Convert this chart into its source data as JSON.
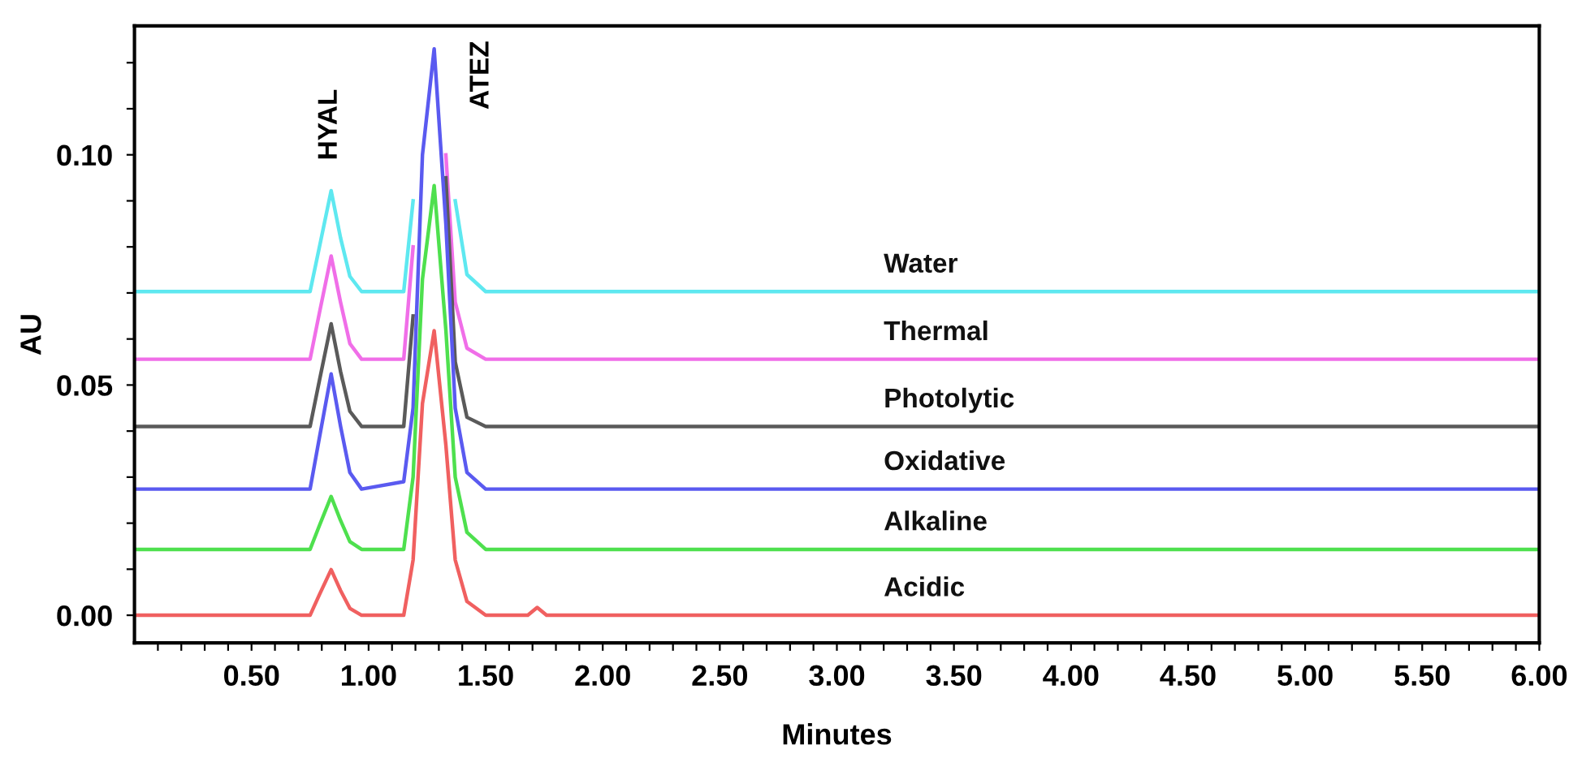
{
  "chart_data": {
    "type": "line",
    "xlabel": "Minutes",
    "ylabel": "AU",
    "x": [
      0.01,
      0.75,
      0.79,
      0.84,
      0.88,
      0.92,
      0.97,
      1.15,
      1.19,
      1.23,
      1.28,
      1.33,
      1.37,
      1.42,
      1.5,
      1.68,
      1.72,
      1.76,
      6.0
    ],
    "series": [
      {
        "name": "Water",
        "color": "#5ee8f0",
        "values": [
          0.0703,
          0.0703,
          0.08,
          0.0922,
          0.082,
          0.0736,
          0.0703,
          0.0703,
          0.09,
          null,
          null,
          null,
          0.09,
          0.074,
          0.0703,
          0.0703,
          0.0703,
          0.0703,
          0.0703
        ]
      },
      {
        "name": "Thermal",
        "color": "#f06ee8",
        "values": [
          0.0556,
          0.0556,
          0.0657,
          0.078,
          0.068,
          0.059,
          0.0556,
          0.0556,
          0.08,
          null,
          null,
          0.1,
          0.068,
          0.058,
          0.0556,
          0.0556,
          0.0556,
          0.0556,
          0.0556
        ]
      },
      {
        "name": "Photolytic",
        "color": "#5a5a5a",
        "values": [
          0.041,
          0.041,
          0.051,
          0.0633,
          0.053,
          0.0443,
          0.041,
          0.041,
          0.065,
          null,
          null,
          0.095,
          0.055,
          0.043,
          0.041,
          0.041,
          0.041,
          0.041,
          0.041
        ]
      },
      {
        "name": "Oxidative",
        "color": "#5a5af0",
        "values": [
          0.0274,
          0.0274,
          0.0386,
          0.0524,
          0.0411,
          0.031,
          0.0274,
          0.029,
          0.045,
          0.1,
          0.123,
          0.085,
          0.045,
          0.031,
          0.0274,
          0.0274,
          0.0274,
          0.0274,
          0.0274
        ]
      },
      {
        "name": "Alkaline",
        "color": "#4ee04e",
        "values": [
          0.0143,
          0.0143,
          0.0195,
          0.0258,
          0.0206,
          0.016,
          0.0143,
          0.0143,
          0.03,
          0.073,
          0.0933,
          0.062,
          0.03,
          0.018,
          0.0143,
          0.0143,
          0.0143,
          0.0143,
          0.0143
        ]
      },
      {
        "name": "Acidic",
        "color": "#f06060",
        "values": [
          0.0,
          0.0,
          0.0045,
          0.0099,
          0.0054,
          0.0015,
          0.0,
          0.0,
          0.012,
          0.046,
          0.0618,
          0.037,
          0.012,
          0.003,
          0.0,
          0.0,
          0.0017,
          0.0,
          0.0
        ]
      }
    ],
    "annotations": [
      "HYAL",
      "ATEZ"
    ],
    "xlim": [
      0.0,
      6.0
    ],
    "ylim": [
      -0.006,
      0.128
    ],
    "xticks": [
      {
        "value": 0.1,
        "label": null
      },
      {
        "value": 0.2,
        "label": null
      },
      {
        "value": 0.3,
        "label": null
      },
      {
        "value": 0.4,
        "label": null
      },
      {
        "value": 0.5,
        "label": "0.50"
      },
      {
        "value": 0.6,
        "label": null
      },
      {
        "value": 0.7,
        "label": null
      },
      {
        "value": 0.8,
        "label": null
      },
      {
        "value": 0.9,
        "label": null
      },
      {
        "value": 1.0,
        "label": "1.00"
      },
      {
        "value": 1.1,
        "label": null
      },
      {
        "value": 1.2,
        "label": null
      },
      {
        "value": 1.3,
        "label": null
      },
      {
        "value": 1.4,
        "label": null
      },
      {
        "value": 1.5,
        "label": "1.50"
      },
      {
        "value": 1.6,
        "label": null
      },
      {
        "value": 1.7,
        "label": null
      },
      {
        "value": 1.8,
        "label": null
      },
      {
        "value": 1.9,
        "label": null
      },
      {
        "value": 2.0,
        "label": "2.00"
      },
      {
        "value": 2.1,
        "label": null
      },
      {
        "value": 2.2,
        "label": null
      },
      {
        "value": 2.3,
        "label": null
      },
      {
        "value": 2.4,
        "label": null
      },
      {
        "value": 2.5,
        "label": "2.50"
      },
      {
        "value": 2.6,
        "label": null
      },
      {
        "value": 2.7,
        "label": null
      },
      {
        "value": 2.8,
        "label": null
      },
      {
        "value": 2.9,
        "label": null
      },
      {
        "value": 3.0,
        "label": "3.00"
      },
      {
        "value": 3.1,
        "label": null
      },
      {
        "value": 3.2,
        "label": null
      },
      {
        "value": 3.3,
        "label": null
      },
      {
        "value": 3.4,
        "label": null
      },
      {
        "value": 3.5,
        "label": "3.50"
      },
      {
        "value": 3.6,
        "label": null
      },
      {
        "value": 3.7,
        "label": null
      },
      {
        "value": 3.8,
        "label": null
      },
      {
        "value": 3.9,
        "label": null
      },
      {
        "value": 4.0,
        "label": "4.00"
      },
      {
        "value": 4.1,
        "label": null
      },
      {
        "value": 4.2,
        "label": null
      },
      {
        "value": 4.3,
        "label": null
      },
      {
        "value": 4.4,
        "label": null
      },
      {
        "value": 4.5,
        "label": "4.50"
      },
      {
        "value": 4.6,
        "label": null
      },
      {
        "value": 4.7,
        "label": null
      },
      {
        "value": 4.8,
        "label": null
      },
      {
        "value": 4.9,
        "label": null
      },
      {
        "value": 5.0,
        "label": "5.00"
      },
      {
        "value": 5.1,
        "label": null
      },
      {
        "value": 5.2,
        "label": null
      },
      {
        "value": 5.3,
        "label": null
      },
      {
        "value": 5.4,
        "label": null
      },
      {
        "value": 5.5,
        "label": "5.50"
      },
      {
        "value": 5.6,
        "label": null
      },
      {
        "value": 5.7,
        "label": null
      },
      {
        "value": 5.8,
        "label": null
      },
      {
        "value": 5.9,
        "label": null
      },
      {
        "value": 6.0,
        "label": "6.00"
      }
    ],
    "yticks": [
      {
        "value": 0.0,
        "label": "0.00"
      },
      {
        "value": 0.01,
        "label": null
      },
      {
        "value": 0.02,
        "label": null
      },
      {
        "value": 0.03,
        "label": null
      },
      {
        "value": 0.04,
        "label": null
      },
      {
        "value": 0.05,
        "label": "0.05"
      },
      {
        "value": 0.06,
        "label": null
      },
      {
        "value": 0.07,
        "label": null
      },
      {
        "value": 0.08,
        "label": null
      },
      {
        "value": 0.09,
        "label": null
      },
      {
        "value": 0.1,
        "label": "0.10"
      },
      {
        "value": 0.11,
        "label": null
      },
      {
        "value": 0.12,
        "label": null
      }
    ],
    "grid": false,
    "legend": false,
    "marker": "none",
    "line_style": "solid"
  }
}
